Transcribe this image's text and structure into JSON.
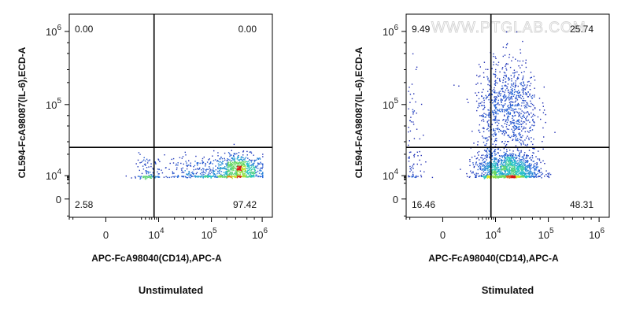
{
  "chart_data": [
    {
      "type": "scatter",
      "caption": "Unstimulated",
      "xlabel": "APC-FcA98040(CD14),APC-A",
      "ylabel": "CL594-FcA98087(IL-6),ECD-A",
      "x_scale": "biexponential",
      "y_scale": "biexponential",
      "x_ticks": [
        {
          "value": "0"
        },
        {
          "value": "10",
          "exp": "4"
        },
        {
          "value": "10",
          "exp": "5"
        },
        {
          "value": "10",
          "exp": "6"
        }
      ],
      "y_ticks": [
        {
          "value": "0"
        },
        {
          "value": "10",
          "exp": "4"
        },
        {
          "value": "10",
          "exp": "5"
        },
        {
          "value": "10",
          "exp": "6"
        }
      ],
      "quadrants": {
        "upper_left": "0.00",
        "upper_right": "0.00",
        "lower_left": "2.58",
        "lower_right": "97.42"
      },
      "quadrant_gate": {
        "x": 4500,
        "y": 25000
      },
      "populations": [
        {
          "x": 350000,
          "y": 12000,
          "spread_x": 0.55,
          "spread_y": 0.25,
          "weight": 0.62
        },
        {
          "x": 60000,
          "y": 11000,
          "spread_x": 0.9,
          "spread_y": 0.3,
          "weight": 0.28
        },
        {
          "x": 1500,
          "y": 9500,
          "spread_x": 1.0,
          "spread_y": 0.35,
          "weight": 0.1
        }
      ]
    },
    {
      "type": "scatter",
      "caption": "Stimulated",
      "xlabel": "APC-FcA98040(CD14),APC-A",
      "ylabel": "CL594-FcA98087(IL-6),ECD-A",
      "x_scale": "biexponential",
      "y_scale": "biexponential",
      "x_ticks": [
        {
          "value": "0"
        },
        {
          "value": "10",
          "exp": "4"
        },
        {
          "value": "10",
          "exp": "5"
        },
        {
          "value": "10",
          "exp": "6"
        }
      ],
      "y_ticks": [
        {
          "value": "0"
        },
        {
          "value": "10",
          "exp": "4"
        },
        {
          "value": "10",
          "exp": "5"
        },
        {
          "value": "10",
          "exp": "6"
        }
      ],
      "quadrants": {
        "upper_left": "9.49",
        "upper_right": "25.74",
        "lower_left": "16.46",
        "lower_right": "48.31"
      },
      "quadrant_gate": {
        "x": 4500,
        "y": 25000
      },
      "watermark": "WWW.PTGLAB.COM",
      "populations": [
        {
          "x": 20000,
          "y": 12000,
          "spread_x": 0.55,
          "spread_y": 0.3,
          "weight": 0.42
        },
        {
          "x": 20000,
          "y": 90000,
          "spread_x": 0.55,
          "spread_y": 0.75,
          "weight": 0.28
        },
        {
          "x": 400,
          "y": 12000,
          "spread_x": 1.2,
          "spread_y": 0.35,
          "weight": 0.18
        },
        {
          "x": 400,
          "y": 80000,
          "spread_x": 1.2,
          "spread_y": 0.75,
          "weight": 0.12
        }
      ]
    }
  ],
  "colors": {
    "axis": "#000000",
    "density_low": "#1a1aa8",
    "density_mid": "#22c3c8",
    "density_high": "#e8e820",
    "density_peak": "#d81818"
  }
}
